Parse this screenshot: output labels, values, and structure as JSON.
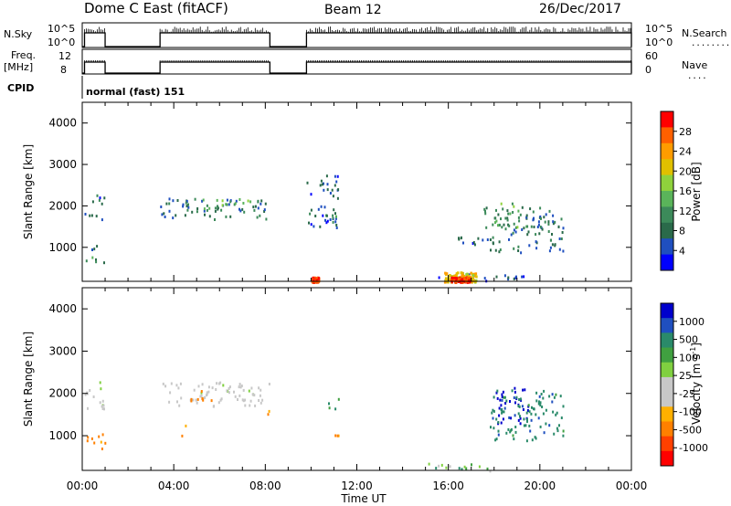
{
  "header": {
    "station": "Dome C East (fitACF)",
    "beam": "Beam 12",
    "date": "26/Dec/2017"
  },
  "panels": {
    "nsky_label": "N.Sky",
    "nsky_ticks": [
      "10^5",
      "10^0"
    ],
    "nsearch_label": "N.Search",
    "nsearch_ticks": [
      "10^5",
      "10^0"
    ],
    "nsearch_dots": "........",
    "freq_label": "Freq.",
    "freq_unit": "[MHz]",
    "freq_ticks": [
      "12",
      "8"
    ],
    "nave_label": "Nave",
    "nave_ticks": [
      "60",
      "0"
    ],
    "nave_dots": "....",
    "cpid_label": "CPID",
    "cpid_value": "normal (fast) 151"
  },
  "colors": {
    "power_scale": [
      "#0000ff",
      "#1f4fbf",
      "#2a6a4a",
      "#3c8a5a",
      "#5ab45a",
      "#8fd23c",
      "#e0c000",
      "#ff9c00",
      "#ff6000",
      "#ff0000"
    ],
    "velocity_scale": [
      "#ff0000",
      "#ff4000",
      "#ff8000",
      "#ffb000",
      "#c8c8c8",
      "#c8c8c8",
      "#80d040",
      "#40a040",
      "#2a8a6a",
      "#1f4fbf",
      "#0000cc"
    ]
  },
  "chart_data": [
    {
      "type": "heatmap",
      "title": "Power",
      "ylabel": "Slant Range [km]",
      "xlabel": "Time UT",
      "ylim": [
        180,
        4500
      ],
      "xlim": [
        0,
        24
      ],
      "yticks": [
        "1000",
        "2000",
        "3000",
        "4000"
      ],
      "xticks": [
        "00:00",
        "04:00",
        "08:00",
        "12:00",
        "16:00",
        "20:00",
        "00:00"
      ],
      "colorbar": {
        "label": "Power [dB]",
        "ticks": [
          "4",
          "8",
          "12",
          "16",
          "20",
          "24",
          "28"
        ],
        "range": [
          0,
          30
        ]
      },
      "scatter_regions": [
        {
          "t": [
            0.1,
            1.0
          ],
          "r": [
            1650,
            1850
          ],
          "value": 6
        },
        {
          "t": [
            0.1,
            1.0
          ],
          "r": [
            2050,
            2300
          ],
          "value": 6
        },
        {
          "t": [
            0.1,
            1.0
          ],
          "r": [
            950,
            1100
          ],
          "value": 5
        },
        {
          "t": [
            0.1,
            1.0
          ],
          "r": [
            650,
            850
          ],
          "value": 10
        },
        {
          "t": [
            3.4,
            8.2
          ],
          "r": [
            1700,
            2200
          ],
          "value": 7
        },
        {
          "t": [
            5.0,
            7.5
          ],
          "r": [
            1900,
            2200
          ],
          "value": 12
        },
        {
          "t": [
            9.8,
            11.2
          ],
          "r": [
            1500,
            2800
          ],
          "value": 6
        },
        {
          "t": [
            10.9,
            11.3
          ],
          "r": [
            1500,
            1800
          ],
          "value": 12
        },
        {
          "t": [
            16.2,
            17.5
          ],
          "r": [
            1000,
            1300
          ],
          "value": 5
        },
        {
          "t": [
            17.5,
            21.0
          ],
          "r": [
            900,
            2000
          ],
          "value": 8
        },
        {
          "t": [
            18.0,
            19.5
          ],
          "r": [
            1500,
            2100
          ],
          "value": 12
        },
        {
          "t": [
            15.5,
            19.5
          ],
          "r": [
            200,
            380
          ],
          "value": 4
        }
      ],
      "hot_spots": [
        {
          "t": [
            15.8,
            17.2
          ],
          "r": [
            180,
            420
          ],
          "value": 20
        },
        {
          "t": [
            16.1,
            16.9
          ],
          "r": [
            180,
            300
          ],
          "value": 28
        },
        {
          "t": [
            10.0,
            10.3
          ],
          "r": [
            180,
            300
          ],
          "value": 26
        }
      ]
    },
    {
      "type": "heatmap",
      "title": "Velocity",
      "ylabel": "Slant Range [km]",
      "xlabel": "Time UT",
      "ylim": [
        180,
        4500
      ],
      "xlim": [
        0,
        24
      ],
      "yticks": [
        "1000",
        "2000",
        "3000",
        "4000"
      ],
      "xticks": [
        "00:00",
        "04:00",
        "08:00",
        "12:00",
        "16:00",
        "20:00",
        "00:00"
      ],
      "colorbar": {
        "label": "Velocity [m s",
        "label_sup": "-1",
        "label_end": "]",
        "ticks": [
          "1000",
          "500",
          "100",
          "25",
          "-25",
          "-100",
          "-500",
          "-1000"
        ]
      },
      "scatter_regions": [
        {
          "t": [
            0.1,
            1.0
          ],
          "r": [
            1650,
            2300
          ],
          "value": 0
        },
        {
          "t": [
            0.1,
            1.0
          ],
          "r": [
            700,
            1100
          ],
          "value": -150
        },
        {
          "t": [
            3.4,
            8.2
          ],
          "r": [
            1700,
            2300
          ],
          "value": 0
        },
        {
          "t": [
            4.5,
            6.0
          ],
          "r": [
            1850,
            2100
          ],
          "value": -150
        },
        {
          "t": [
            7.9,
            8.2
          ],
          "r": [
            1500,
            1800
          ],
          "value": -150
        },
        {
          "t": [
            4.2,
            4.5
          ],
          "r": [
            1000,
            1300
          ],
          "value": -150
        },
        {
          "t": [
            10.7,
            11.2
          ],
          "r": [
            1600,
            1900
          ],
          "value": 200
        },
        {
          "t": [
            10.8,
            11.2
          ],
          "r": [
            1000,
            1300
          ],
          "value": -150
        },
        {
          "t": [
            18.0,
            19.5
          ],
          "r": [
            1300,
            2200
          ],
          "value": 800
        },
        {
          "t": [
            17.8,
            21.0
          ],
          "r": [
            900,
            2100
          ],
          "value": 200
        },
        {
          "t": [
            15.0,
            18.0
          ],
          "r": [
            190,
            380
          ],
          "value": 80
        }
      ]
    }
  ]
}
